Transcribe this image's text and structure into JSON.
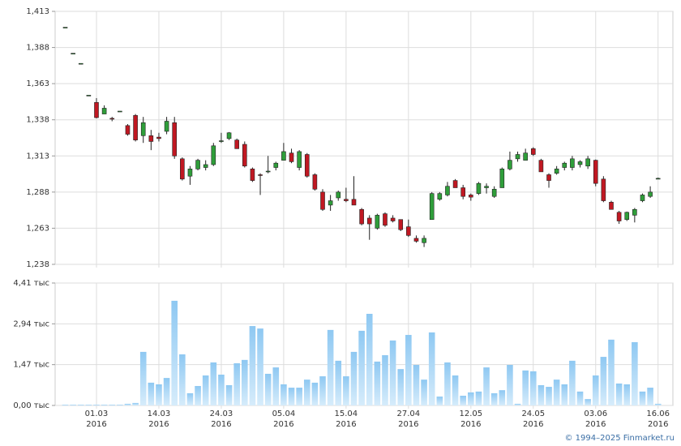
{
  "footer": "© 1994–2025 Finmarket.ru",
  "chart_data": [
    {
      "type": "candlestick",
      "up_color": "#2f9e3a",
      "down_color": "#c01822",
      "xlim": [
        -1.3,
        77.9
      ],
      "ylim": [
        1238,
        1413
      ],
      "yticks": [
        {
          "value": 1238,
          "label": "1,238"
        },
        {
          "value": 1263,
          "label": "1,263"
        },
        {
          "value": 1288,
          "label": "1,288"
        },
        {
          "value": 1313,
          "label": "1,313"
        },
        {
          "value": 1338,
          "label": "1,338"
        },
        {
          "value": 1363,
          "label": "1,363"
        },
        {
          "value": 1388,
          "label": "1,388"
        },
        {
          "value": 1413,
          "label": "1,413"
        }
      ],
      "grid": true,
      "open": [
        1402,
        1384,
        1377,
        1355,
        1350,
        1342,
        1339,
        1344,
        1334,
        1341,
        1327,
        1327,
        1326,
        1330,
        1336,
        1311,
        1299,
        1304,
        1305,
        1307,
        1323,
        1325,
        1324,
        1321,
        1304,
        1300,
        1302,
        1305,
        1310,
        1315,
        1305,
        1314,
        1300,
        1288,
        1279,
        1284,
        1283,
        1283,
        1276,
        1270,
        1263,
        1273,
        1270,
        1269,
        1264,
        1256,
        1253,
        1269,
        1283,
        1286,
        1296,
        1291,
        1286,
        1287,
        1291,
        1285,
        1291,
        1304,
        1311,
        1310,
        1318,
        1310,
        1300,
        1301,
        1305,
        1305,
        1307,
        1306,
        1310,
        1297,
        1281,
        1274,
        1269,
        1272,
        1282,
        1285,
        1297
      ],
      "high": [
        1402,
        1384,
        1377,
        1355,
        1353,
        1348,
        1340,
        1344,
        1335,
        1342,
        1340,
        1331,
        1329,
        1340,
        1340,
        1312,
        1306,
        1311,
        1310,
        1322,
        1329,
        1329.5,
        1325,
        1323,
        1305,
        1301,
        1313,
        1309,
        1322,
        1318,
        1317,
        1315,
        1301,
        1290,
        1286,
        1289,
        1291,
        1299,
        1277,
        1272,
        1273,
        1274,
        1272,
        1269,
        1269,
        1258,
        1258,
        1288,
        1288,
        1295,
        1297,
        1293,
        1287,
        1295,
        1294,
        1292,
        1305,
        1316,
        1316,
        1318,
        1319,
        1311,
        1301,
        1306,
        1309,
        1313,
        1310,
        1313,
        1310.5,
        1299,
        1282,
        1275,
        1274.5,
        1277,
        1287,
        1292,
        1298
      ],
      "low": [
        1402,
        1384,
        1377,
        1355,
        1339,
        1342,
        1337,
        1344,
        1327,
        1323,
        1322,
        1317,
        1323,
        1328,
        1311,
        1296,
        1293,
        1303,
        1303,
        1306,
        1322,
        1324,
        1318,
        1305,
        1295,
        1286,
        1301,
        1303,
        1310,
        1308,
        1303,
        1298,
        1289,
        1275,
        1275,
        1282,
        1281,
        1279,
        1265,
        1255,
        1262,
        1264,
        1267,
        1261,
        1257,
        1253,
        1250,
        1269,
        1282,
        1285,
        1291,
        1283,
        1282,
        1286,
        1287,
        1284,
        1291,
        1303,
        1309,
        1310,
        1313,
        1302,
        1291,
        1300,
        1303,
        1303,
        1305,
        1304,
        1292,
        1281,
        1276,
        1266,
        1268,
        1267,
        1281,
        1284,
        1297
      ],
      "close": [
        1402,
        1384,
        1377,
        1355,
        1339.5,
        1346,
        1338.5,
        1344,
        1328,
        1324,
        1336,
        1323,
        1325,
        1337,
        1313,
        1297,
        1304,
        1310,
        1307,
        1320,
        1323.5,
        1329,
        1318,
        1306,
        1296,
        1299.5,
        1302.5,
        1308,
        1316,
        1309,
        1316,
        1299,
        1290,
        1276,
        1282,
        1288,
        1282,
        1279,
        1266,
        1266,
        1272,
        1265,
        1268,
        1262,
        1258,
        1254,
        1256,
        1287,
        1287,
        1292,
        1291,
        1285,
        1284.5,
        1294,
        1292,
        1290,
        1304,
        1310,
        1314,
        1315,
        1314,
        1302,
        1296,
        1304,
        1308,
        1311,
        1309,
        1311,
        1294,
        1282,
        1276,
        1268,
        1274,
        1276,
        1286,
        1288,
        1297.5
      ]
    },
    {
      "type": "bar",
      "color": "#8ec8f2",
      "xlim": [
        -1.3,
        77.9
      ],
      "ylim": [
        0,
        4.41
      ],
      "yticks": [
        {
          "value": 0,
          "label": "0,00 тыс"
        },
        {
          "value": 1.47,
          "label": "1,47 тыс"
        },
        {
          "value": 2.94,
          "label": "2,94 тыс"
        },
        {
          "value": 4.41,
          "label": "4,41 тыс"
        }
      ],
      "xticks": [
        {
          "value": 4,
          "label": "01.03\n2016"
        },
        {
          "value": 12,
          "label": "14.03\n2016"
        },
        {
          "value": 20,
          "label": "24.03\n2016"
        },
        {
          "value": 28,
          "label": "05.04\n2016"
        },
        {
          "value": 36,
          "label": "15.04\n2016"
        },
        {
          "value": 44,
          "label": "27.04\n2016"
        },
        {
          "value": 52,
          "label": "12.05\n2016"
        },
        {
          "value": 60,
          "label": "24.05\n2016"
        },
        {
          "value": 68,
          "label": "03.06\n2016"
        },
        {
          "value": 76,
          "label": "16.06\n2016"
        }
      ],
      "grid": true,
      "values": [
        0.03,
        0.03,
        0.03,
        0.03,
        0.03,
        0.03,
        0.03,
        0.03,
        0.06,
        0.09,
        1.93,
        0.82,
        0.76,
        0.99,
        3.77,
        1.84,
        0.44,
        0.7,
        1.08,
        1.55,
        1.11,
        0.73,
        1.52,
        1.64,
        2.86,
        2.77,
        1.14,
        1.37,
        0.76,
        0.64,
        0.64,
        0.93,
        0.82,
        1.05,
        2.72,
        1.61,
        1.05,
        1.93,
        2.69,
        3.3,
        1.58,
        1.81,
        2.34,
        1.31,
        2.54,
        1.46,
        0.93,
        2.63,
        0.32,
        1.55,
        1.08,
        0.35,
        0.47,
        0.5,
        1.37,
        0.44,
        0.55,
        1.46,
        0.06,
        1.26,
        1.23,
        0.73,
        0.67,
        0.93,
        0.76,
        1.61,
        0.5,
        0.23,
        1.08,
        1.75,
        2.37,
        0.79,
        0.76,
        2.28,
        0.5,
        0.64,
        0.06
      ]
    }
  ]
}
